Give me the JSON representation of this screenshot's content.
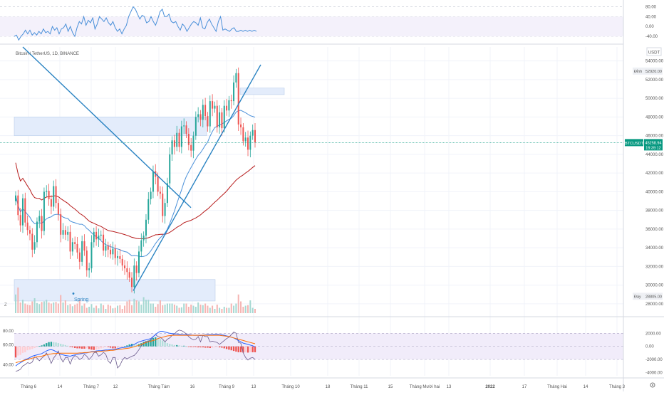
{
  "header": {
    "symbol_title": "Bitcoin / TetherUS, 1D, BINANCE",
    "currency": "USDT"
  },
  "colors": {
    "up": "#26a69a",
    "down": "#ef5350",
    "trendline": "#2a83c2",
    "ema_long": "#b71c1c",
    "sma_blue": "#4a90d9",
    "zone_fill": "#e3ecfb",
    "price_tag": "#089981",
    "ind_bg": "#f1ecfa"
  },
  "chart_data": [
    {
      "type": "line",
      "name": "top-oscillator",
      "yticks": [
        80.0,
        40.0,
        0.0,
        -40.0
      ],
      "y_range": [
        -60,
        90
      ],
      "x": [
        0,
        1,
        2,
        3,
        4,
        5,
        6,
        7,
        8,
        9,
        10,
        11,
        12,
        13,
        14,
        15,
        16,
        17,
        18,
        19,
        20,
        21,
        22,
        23,
        24,
        25,
        26,
        27,
        28,
        29,
        30,
        31,
        32,
        33,
        34,
        35,
        36,
        37,
        38,
        39,
        40,
        41,
        42,
        43,
        44,
        45,
        46,
        47,
        48,
        49,
        50,
        51,
        52,
        53,
        54,
        55,
        56,
        57,
        58,
        59,
        60,
        61,
        62,
        63,
        64,
        65,
        66,
        67,
        68,
        69,
        70,
        71,
        72,
        73,
        74,
        75,
        76,
        77,
        78,
        79,
        80,
        81,
        82,
        83,
        84,
        85,
        86,
        87,
        88,
        89,
        90,
        91,
        92,
        93,
        94,
        95,
        96,
        97,
        98,
        99,
        100,
        101,
        102,
        103,
        104,
        105,
        106,
        107,
        108
      ],
      "values": [
        -40,
        -35,
        -55,
        -40,
        -30,
        -15,
        -30,
        -15,
        -35,
        -25,
        -35,
        -20,
        -30,
        -10,
        -25,
        -20,
        -30,
        0,
        -15,
        -5,
        -30,
        -10,
        -5,
        10,
        -20,
        0,
        -25,
        -40,
        -5,
        20,
        10,
        40,
        5,
        25,
        15,
        35,
        -10,
        10,
        40,
        30,
        20,
        35,
        15,
        5,
        20,
        -5,
        -20,
        -10,
        -30,
        -10,
        5,
        40,
        60,
        80,
        70,
        50,
        30,
        45,
        40,
        15,
        20,
        40,
        20,
        5,
        30,
        60,
        70,
        40,
        40,
        50,
        20,
        15,
        20,
        0,
        -15,
        10,
        0,
        -20,
        -5,
        10,
        20,
        15,
        5,
        35,
        -5,
        -10,
        15,
        30,
        10,
        -5,
        -20,
        20,
        40,
        -15,
        -10,
        -15,
        -20,
        -10,
        -5,
        -20,
        -20,
        -15,
        -20,
        -15,
        -20,
        -15,
        -20,
        -15,
        -20
      ]
    },
    {
      "type": "candlestick",
      "name": "BTCUSDT",
      "xlabels": [
        "Tháng 6",
        "14",
        "Tháng 7",
        "12",
        "Tháng Tám",
        "16",
        "Tháng 9",
        "13",
        "Tháng 10",
        "18",
        "Tháng 11",
        "15",
        "Tháng Mười hai",
        "13",
        "2022",
        "17",
        "Tháng Hai",
        "14",
        "Tháng 3"
      ],
      "yticks": [
        54000,
        52000,
        50000,
        48000,
        46000,
        44000,
        42000,
        40000,
        38000,
        36000,
        34000,
        32000,
        30000,
        28000
      ],
      "y_range": [
        27000,
        55500
      ],
      "last_price": 45258.94,
      "last_price_label": "BTCUSDT",
      "countdown": "19:39:12",
      "high_marker": {
        "label": "Đỉnh",
        "value": 52920.0
      },
      "low_marker": {
        "label": "Đáy",
        "value": 28805.0
      },
      "annotation": "Spring",
      "candles_close": [
        39600,
        37500,
        36400,
        39300,
        36700,
        35900,
        35500,
        33800,
        34600,
        36800,
        37400,
        35800,
        40000,
        40100,
        39200,
        38400,
        40600,
        38800,
        37600,
        35400,
        35900,
        35400,
        35700,
        33600,
        34600,
        34400,
        33500,
        32500,
        34700,
        33700,
        31600,
        31800,
        34600,
        35700,
        34900,
        35300,
        35400,
        33700,
        34200,
        33800,
        33300,
        33900,
        32900,
        33100,
        32800,
        32100,
        31800,
        31400,
        30800,
        29800,
        32100,
        31300,
        33600,
        34800,
        35300,
        37000,
        39200,
        40000,
        42200,
        41600,
        40000,
        39800,
        37400,
        38800,
        40900,
        44000,
        45500,
        44800,
        46300,
        44800,
        47000,
        47100,
        46200,
        45000,
        44400,
        46000,
        48000,
        48300,
        47700,
        49300,
        48100,
        47000,
        49700,
        48900,
        49200,
        46900,
        48500,
        46800,
        49200,
        48700,
        49800,
        49700,
        51700,
        52700,
        47200,
        46900,
        45400,
        45800,
        44500,
        46000,
        46600,
        45300
      ],
      "volume": [
        35,
        48,
        20,
        25,
        18,
        16,
        15,
        22,
        28,
        19,
        17,
        21,
        22,
        25,
        20,
        18,
        20,
        21,
        18,
        34,
        20,
        24,
        15,
        17,
        13,
        16,
        18,
        25,
        14,
        18,
        10,
        12,
        17,
        10,
        14,
        9,
        18,
        15,
        8,
        16,
        14,
        9,
        10,
        14,
        15,
        8,
        14,
        22,
        25,
        15,
        27,
        24,
        22,
        16,
        30,
        25,
        25,
        18,
        18,
        12,
        17,
        24,
        15,
        16,
        18,
        18,
        18,
        16,
        14,
        10,
        11,
        18,
        18,
        12,
        16,
        14,
        12,
        20,
        16,
        15,
        18,
        14,
        10,
        14,
        8,
        16,
        10,
        8,
        12,
        10,
        10,
        18,
        14,
        18,
        35,
        22,
        12,
        14,
        15,
        24,
        10,
        8
      ]
    },
    {
      "type": "line",
      "name": "bottom-indicator",
      "left_yticks": [
        80.0,
        60.0,
        40.0
      ],
      "right_yticks": [
        2000.0,
        0.0,
        -2000.0,
        -4000.0
      ],
      "y_range": [
        -4500,
        2800
      ],
      "histogram": [
        -1700,
        -1400,
        -1300,
        -1000,
        -900,
        -600,
        -500,
        -400,
        -250,
        -100,
        50,
        150,
        300,
        500,
        650,
        700,
        650,
        600,
        500,
        400,
        300,
        200,
        100,
        -50,
        -150,
        -250,
        -300,
        -300,
        -350,
        -350,
        -300,
        -400,
        -500,
        -550,
        -500,
        -400,
        -300,
        -200,
        -100,
        -100,
        -200,
        -300,
        -300,
        -250,
        -150,
        -50,
        50,
        150,
        300,
        400,
        350,
        300,
        350,
        500,
        700,
        800,
        900,
        1100,
        1300,
        1400,
        1250,
        1150,
        900,
        700,
        500,
        400,
        300,
        200,
        200,
        150,
        100,
        100,
        0,
        -50,
        -100,
        -100,
        -100,
        -150,
        -150,
        -150,
        -200,
        -200,
        -250,
        -200,
        -150,
        -100,
        -150,
        -200,
        -300,
        -400,
        -500,
        -600,
        -700,
        -800,
        -900,
        -900,
        -950,
        -900,
        -950,
        -900,
        -900,
        -900
      ],
      "macd": [
        -3000,
        -2700,
        -2500,
        -2300,
        -2000,
        -1900,
        -1700,
        -1500,
        -1400,
        -1300,
        -1200,
        -1100,
        -900,
        -700,
        -550,
        -500,
        -600,
        -800,
        -1000,
        -1200,
        -1300,
        -1400,
        -1450,
        -1500,
        -1400,
        -1300,
        -1200,
        -1150,
        -1100,
        -1000,
        -1000,
        -900,
        -800,
        -800,
        -700,
        -650,
        -650,
        -600,
        -550,
        -550,
        -500,
        -500,
        -450,
        -350,
        -250,
        -200,
        -150,
        -100,
        0,
        150,
        300,
        500,
        700,
        800,
        900,
        1000,
        1100,
        1200,
        1500,
        1800,
        2100,
        2300,
        2300,
        2200,
        2100,
        2000,
        1950,
        1900,
        1900,
        1850,
        1800,
        1800,
        1800,
        1800,
        1750,
        1700,
        1700,
        1700,
        1650,
        1700,
        1750,
        1800,
        1800,
        1800,
        1850,
        1850,
        1800,
        1750,
        1700,
        1600,
        1500,
        1400,
        1300,
        1100,
        900,
        700,
        500,
        400,
        300,
        200,
        100,
        -100
      ],
      "signal": [
        -2500,
        -2400,
        -2300,
        -2200,
        -2100,
        -2000,
        -1900,
        -1800,
        -1700,
        -1600,
        -1550,
        -1500,
        -1400,
        -1300,
        -1200,
        -1150,
        -1100,
        -1100,
        -1050,
        -1050,
        -1050,
        -1050,
        -1050,
        -1050,
        -1050,
        -1050,
        -1050,
        -1000,
        -1000,
        -950,
        -950,
        -900,
        -850,
        -850,
        -800,
        -750,
        -750,
        -700,
        -700,
        -650,
        -600,
        -600,
        -550,
        -500,
        -450,
        -400,
        -350,
        -300,
        -250,
        -150,
        -50,
        50,
        150,
        300,
        450,
        600,
        700,
        800,
        900,
        1000,
        1200,
        1300,
        1400,
        1500,
        1600,
        1650,
        1700,
        1700,
        1700,
        1700,
        1700,
        1700,
        1700,
        1700,
        1700,
        1700,
        1700,
        1700,
        1700,
        1700,
        1700,
        1700,
        1700,
        1700,
        1700,
        1700,
        1700,
        1650,
        1600,
        1550,
        1500,
        1400,
        1300,
        1200,
        1100,
        1000,
        900,
        800,
        700,
        600,
        500,
        400
      ],
      "oscillator": [
        -3800,
        -3700,
        -3500,
        -3000,
        -2800,
        -2500,
        -2600,
        -2400,
        -1600,
        -1800,
        -2200,
        -1800,
        -1500,
        -1000,
        -1700,
        -2600,
        -1800,
        -1300,
        -700,
        -1800,
        -2400,
        -1700,
        -1700,
        -2700,
        -1800,
        -1400,
        -1600,
        -2000,
        -1800,
        -1200,
        -1500,
        -2000,
        -1600,
        -1000,
        -900,
        -1500,
        -1300,
        -900,
        -1200,
        -2200,
        -2600,
        -1700,
        -1700,
        -3300,
        -2900,
        -2100,
        -1700,
        -1900,
        -1700,
        -1500,
        -1400,
        -1000,
        -500,
        100,
        500,
        700,
        800,
        1000,
        1500,
        1800,
        1500,
        1400,
        1100,
        700,
        1100,
        1300,
        1700,
        1900,
        2300,
        2500,
        2400,
        2200,
        1900,
        1500,
        1200,
        1000,
        1100,
        1500,
        700,
        1700,
        1500,
        1500,
        700,
        800,
        700,
        600,
        300,
        600,
        900,
        1200,
        1400,
        1800,
        2200,
        2000,
        600,
        500,
        -1000,
        -1700,
        -2100,
        -1800,
        -1700,
        -2000
      ]
    }
  ]
}
